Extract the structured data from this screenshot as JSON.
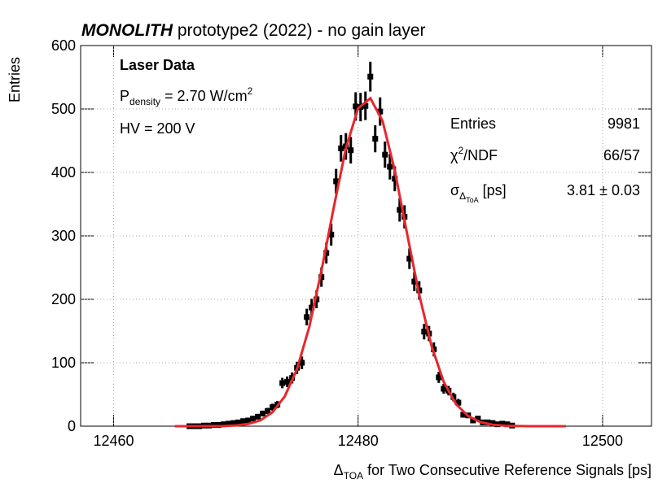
{
  "chart_data": {
    "type": "errorbar",
    "title": {
      "bold": "MONOLITH",
      "rest": " prototype2 (2022) - no gain layer"
    },
    "y_label": "Entries",
    "x_label": {
      "symbol": "Δ",
      "sub": "TOA",
      "rest": " for Two Consecutive Reference Signals [ps]"
    },
    "annotations": {
      "heading": "Laser Data",
      "density": {
        "base": "P",
        "sub": "density",
        "mid": " = 2.70 W/cm",
        "sup": "2"
      },
      "hv": "HV = 200 V"
    },
    "stats": {
      "entries_label": "Entries",
      "entries_value": "9981",
      "chi_label": {
        "base": "χ",
        "sup": "2",
        "rest": "/NDF"
      },
      "chi_value": "66/57",
      "sigma_label": {
        "base": "σ",
        "sub": "Δ",
        "subsub": "ToA",
        "rest": " [ps]"
      },
      "sigma_value": "3.81 ± 0.03"
    },
    "xlim": [
      12457.3,
      12504
    ],
    "ylim": [
      0,
      600
    ],
    "xticks": [
      12460,
      12480,
      12500
    ],
    "yticks": [
      0,
      100,
      200,
      300,
      400,
      500,
      600
    ],
    "grid": true,
    "color": "#000000",
    "x": [
      12466.2,
      12466.6,
      12467.0,
      12467.4,
      12467.8,
      12468.2,
      12468.6,
      12469.0,
      12469.4,
      12469.8,
      12470.2,
      12470.6,
      12471.0,
      12471.4,
      12471.8,
      12472.2,
      12472.6,
      12473.0,
      12473.4,
      12473.8,
      12474.2,
      12474.6,
      12475.0,
      12475.4,
      12475.8,
      12476.2,
      12476.6,
      12477.0,
      12477.4,
      12477.8,
      12478.2,
      12478.6,
      12479.0,
      12479.4,
      12479.8,
      12480.2,
      12480.6,
      12481.0,
      12481.4,
      12481.8,
      12482.2,
      12482.6,
      12483.0,
      12483.4,
      12483.8,
      12484.2,
      12484.6,
      12485.0,
      12485.4,
      12485.8,
      12486.2,
      12486.6,
      12487.0,
      12487.4,
      12487.8,
      12488.2,
      12488.6,
      12489.0,
      12489.4,
      12489.8,
      12490.2,
      12490.6,
      12491.0,
      12491.4,
      12491.8,
      12492.2,
      12492.6
    ],
    "values": [
      0,
      0,
      0,
      1,
      1,
      2,
      2,
      3,
      4,
      5,
      6,
      8,
      9,
      12,
      15,
      20,
      24,
      30,
      34,
      68,
      70,
      76,
      92,
      100,
      172,
      187,
      200,
      235,
      273,
      302,
      386,
      438,
      441,
      435,
      504,
      503,
      505,
      551,
      453,
      496,
      428,
      409,
      390,
      341,
      330,
      264,
      228,
      214,
      149,
      146,
      121,
      77,
      59,
      56,
      46,
      37,
      18,
      17,
      9,
      12,
      6,
      6,
      5,
      3,
      4,
      3,
      1
    ],
    "errors": [
      0,
      0,
      0,
      1,
      1,
      1.4,
      1.4,
      1.7,
      2,
      2.2,
      2.4,
      2.8,
      3,
      3.5,
      3.9,
      4.5,
      4.9,
      5.5,
      5.8,
      8.2,
      8.4,
      8.7,
      9.6,
      10,
      13.1,
      13.7,
      14.1,
      15.3,
      16.5,
      17.4,
      19.6,
      20.9,
      21,
      20.9,
      22.4,
      22.4,
      22.5,
      23.5,
      21.3,
      22.3,
      20.7,
      20.2,
      19.7,
      18.5,
      18.2,
      16.2,
      15.1,
      14.6,
      12.2,
      12.1,
      11,
      8.8,
      7.7,
      7.5,
      6.8,
      6.1,
      4.2,
      4.1,
      3,
      3.5,
      2.4,
      2.4,
      2.2,
      1.7,
      2,
      1.7,
      1
    ],
    "fit": {
      "color": "#e8262b",
      "x": [
        12465,
        12466,
        12467,
        12468,
        12469,
        12470,
        12471,
        12472,
        12473,
        12474,
        12475,
        12476,
        12477,
        12478,
        12479,
        12480,
        12481,
        12482,
        12483,
        12484,
        12485,
        12486,
        12487,
        12488,
        12489,
        12490,
        12491,
        12492,
        12493,
        12494,
        12495,
        12496,
        12497
      ],
      "y": [
        0,
        0,
        0,
        0.1,
        0.4,
        1.2,
        3.5,
        9.2,
        22,
        47,
        90,
        156,
        245,
        344,
        438,
        501,
        517,
        481,
        403,
        304,
        207,
        127,
        70,
        35,
        16,
        6.4,
        2.3,
        0.8,
        0.2,
        0,
        0,
        0,
        0
      ]
    }
  }
}
